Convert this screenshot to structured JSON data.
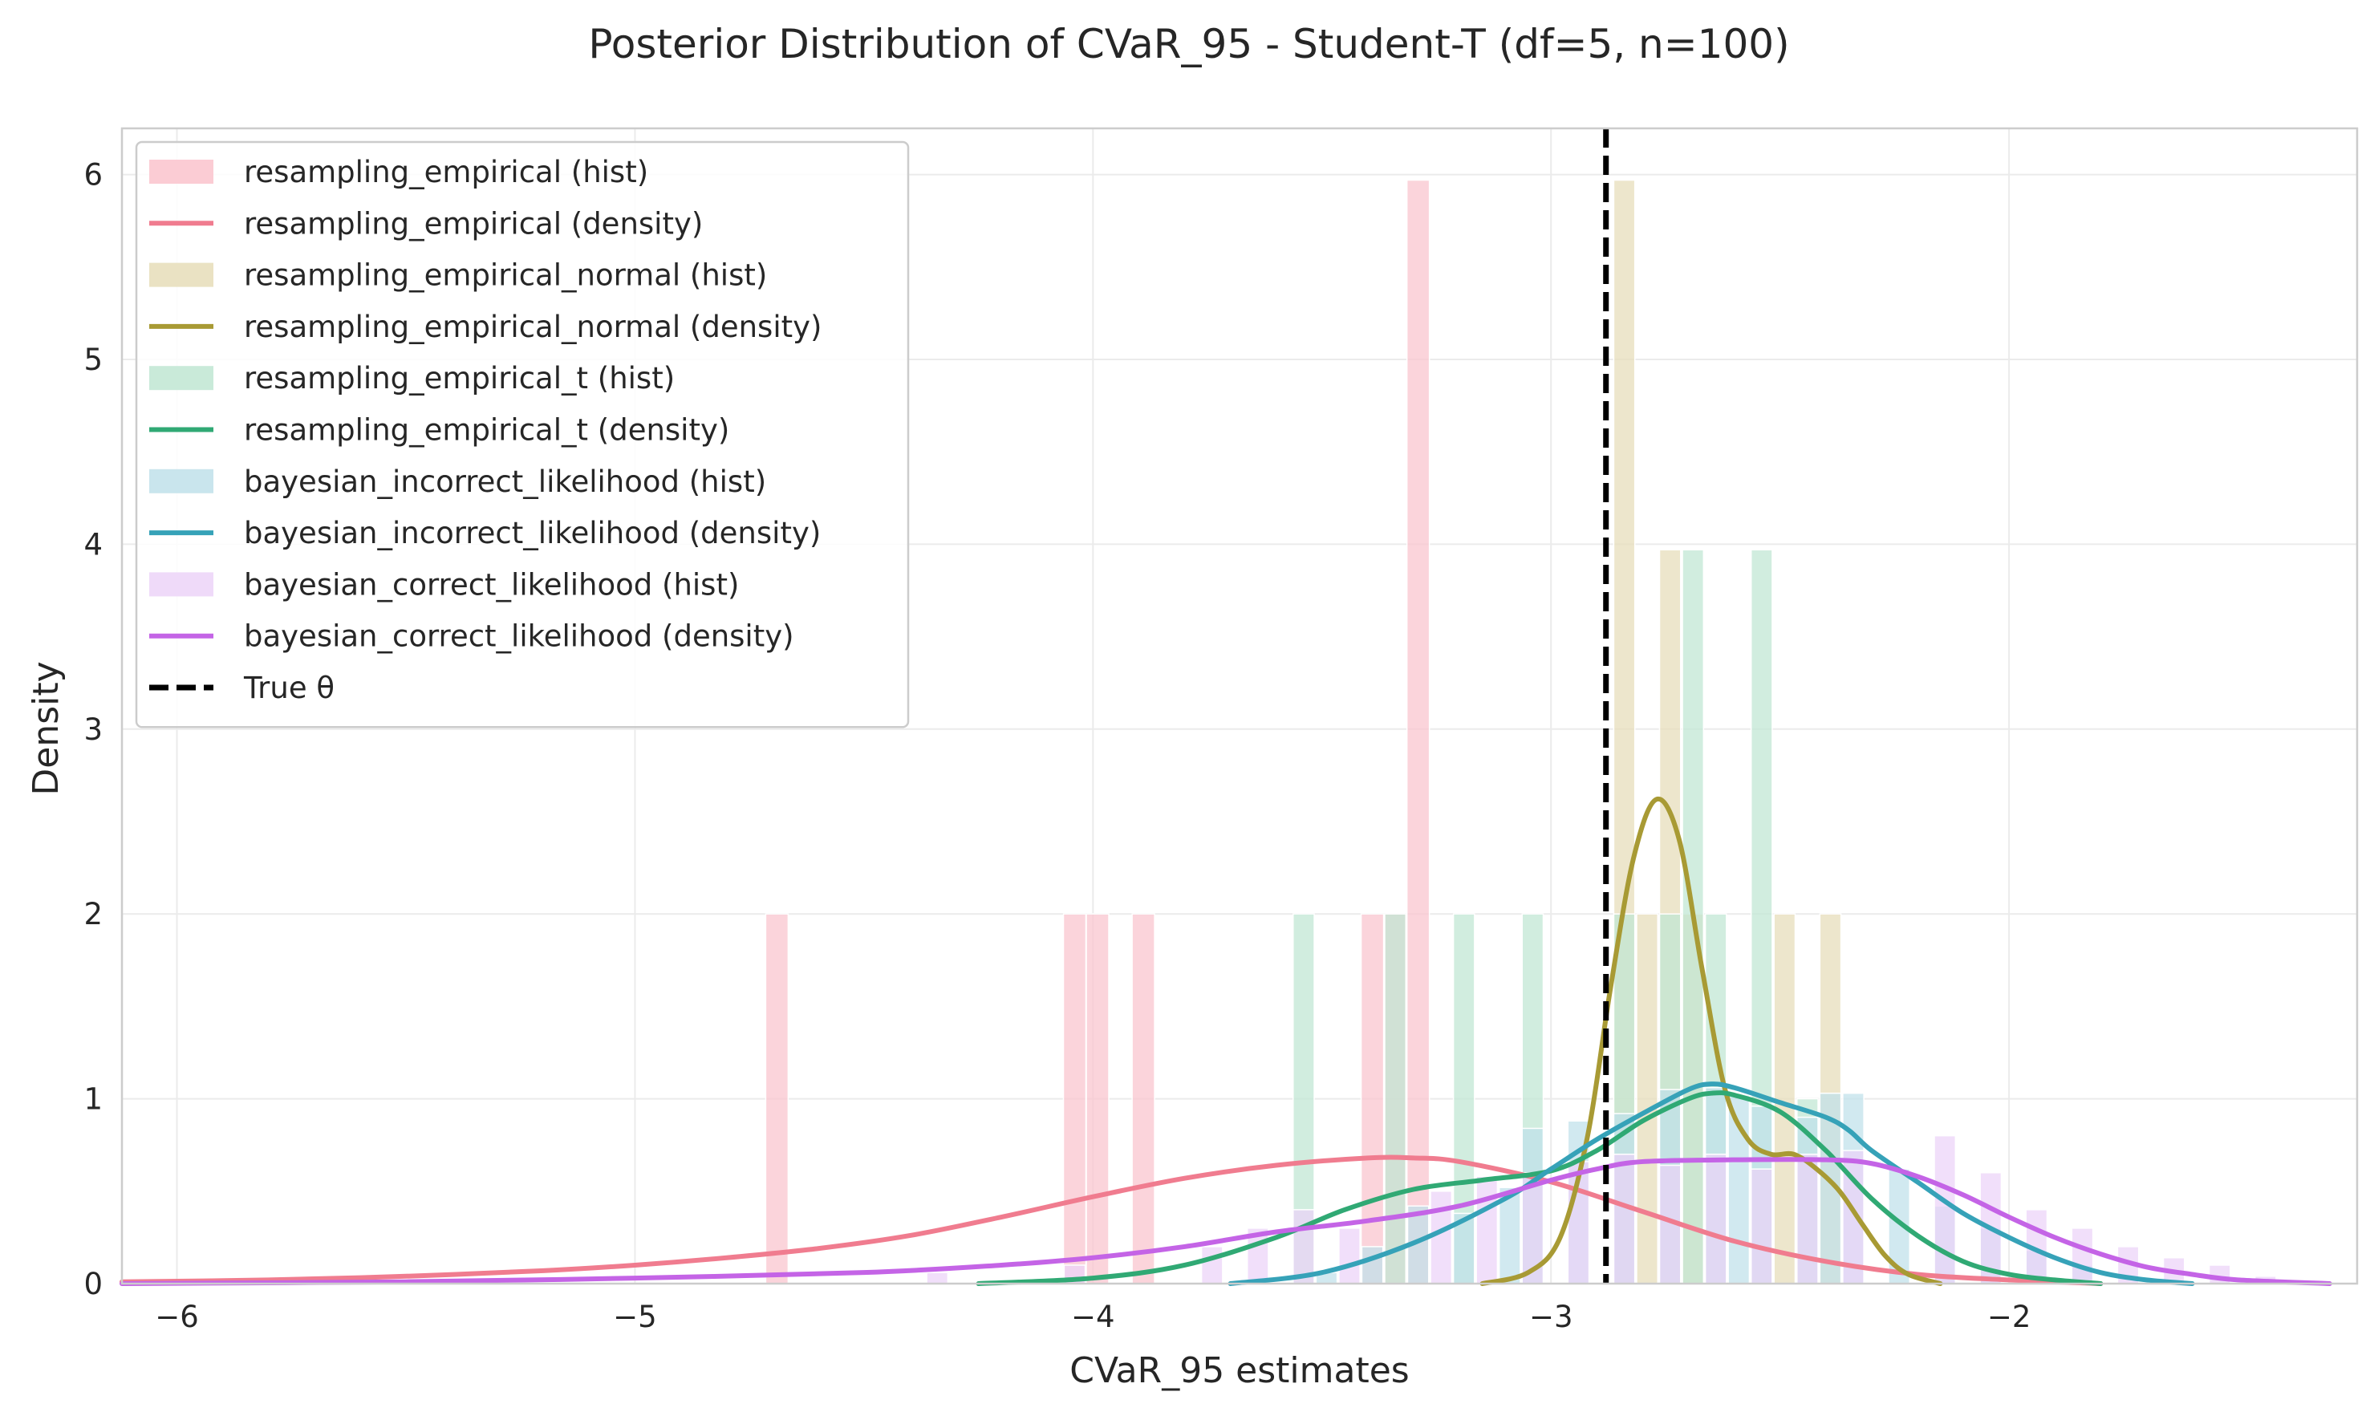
{
  "chart_data": {
    "type": "histogram+density",
    "title": "Posterior Distribution of CVaR_95 - Student-T (df=5, n=100)",
    "xlabel": "CVaR_95 estimates",
    "ylabel": "Density",
    "xlim": [
      -6.12,
      -1.24
    ],
    "ylim": [
      0,
      6.25
    ],
    "xticks": [
      -6,
      -5,
      -4,
      -3,
      -2
    ],
    "xtick_labels": [
      "−6",
      "−5",
      "−4",
      "−3",
      "−2"
    ],
    "yticks": [
      0,
      1,
      2,
      3,
      4,
      5,
      6
    ],
    "ytick_labels": [
      "0",
      "1",
      "2",
      "3",
      "4",
      "5",
      "6"
    ],
    "grid": true,
    "legend_position": "upper-left",
    "true_theta": {
      "label": "True θ",
      "x": -2.88,
      "color": "#000000",
      "style": "dashed"
    },
    "series": [
      {
        "name": "resampling_empirical",
        "hist_label": "resampling_empirical (hist)",
        "density_label": "resampling_empirical (density)",
        "color": "#f07c8f",
        "hist_color": "#fac3cd",
        "bin_width": 0.049,
        "hist": [
          [
            -4.69,
            2.0
          ],
          [
            -4.04,
            2.0
          ],
          [
            -3.99,
            2.0
          ],
          [
            -3.89,
            2.0
          ],
          [
            -3.39,
            2.0
          ],
          [
            -3.29,
            5.97
          ],
          [
            -3.34,
            2.0
          ]
        ],
        "density": [
          [
            -6.12,
            0.01
          ],
          [
            -5.8,
            0.02
          ],
          [
            -5.5,
            0.04
          ],
          [
            -5.2,
            0.07
          ],
          [
            -5.0,
            0.1
          ],
          [
            -4.8,
            0.14
          ],
          [
            -4.6,
            0.19
          ],
          [
            -4.4,
            0.26
          ],
          [
            -4.2,
            0.36
          ],
          [
            -4.0,
            0.47
          ],
          [
            -3.8,
            0.57
          ],
          [
            -3.6,
            0.64
          ],
          [
            -3.4,
            0.68
          ],
          [
            -3.3,
            0.68
          ],
          [
            -3.2,
            0.66
          ],
          [
            -3.0,
            0.55
          ],
          [
            -2.8,
            0.39
          ],
          [
            -2.6,
            0.23
          ],
          [
            -2.4,
            0.12
          ],
          [
            -2.2,
            0.05
          ],
          [
            -2.0,
            0.02
          ],
          [
            -1.8,
            0.0
          ]
        ]
      },
      {
        "name": "resampling_empirical_normal",
        "hist_label": "resampling_empirical_normal (hist)",
        "density_label": "resampling_empirical_normal (density)",
        "color": "#a89a34",
        "hist_color": "#e6ddb8",
        "bin_width": 0.046,
        "hist": [
          [
            -2.84,
            5.97
          ],
          [
            -2.79,
            2.0
          ],
          [
            -2.74,
            3.97
          ],
          [
            -2.69,
            2.0
          ],
          [
            -2.49,
            2.0
          ],
          [
            -2.39,
            2.0
          ]
        ],
        "density": [
          [
            -3.15,
            0.0
          ],
          [
            -3.05,
            0.06
          ],
          [
            -2.98,
            0.25
          ],
          [
            -2.92,
            0.8
          ],
          [
            -2.87,
            1.6
          ],
          [
            -2.82,
            2.3
          ],
          [
            -2.77,
            2.62
          ],
          [
            -2.72,
            2.4
          ],
          [
            -2.67,
            1.7
          ],
          [
            -2.62,
            1.05
          ],
          [
            -2.57,
            0.78
          ],
          [
            -2.52,
            0.7
          ],
          [
            -2.47,
            0.7
          ],
          [
            -2.42,
            0.62
          ],
          [
            -2.37,
            0.5
          ],
          [
            -2.32,
            0.32
          ],
          [
            -2.27,
            0.15
          ],
          [
            -2.22,
            0.05
          ],
          [
            -2.15,
            0.0
          ]
        ]
      },
      {
        "name": "resampling_empirical_t",
        "hist_label": "resampling_empirical_t (hist)",
        "density_label": "resampling_empirical_t (density)",
        "color": "#30a974",
        "hist_color": "#bfe6d2",
        "bin_width": 0.046,
        "hist": [
          [
            -3.54,
            2.0
          ],
          [
            -3.34,
            2.0
          ],
          [
            -3.19,
            2.0
          ],
          [
            -3.04,
            2.0
          ],
          [
            -2.84,
            2.0
          ],
          [
            -2.74,
            2.0
          ],
          [
            -2.69,
            3.97
          ],
          [
            -2.64,
            2.0
          ],
          [
            -2.54,
            3.97
          ],
          [
            -2.44,
            1.0
          ]
        ],
        "density": [
          [
            -4.25,
            0.0
          ],
          [
            -4.0,
            0.03
          ],
          [
            -3.8,
            0.1
          ],
          [
            -3.6,
            0.25
          ],
          [
            -3.45,
            0.4
          ],
          [
            -3.3,
            0.51
          ],
          [
            -3.15,
            0.56
          ],
          [
            -3.0,
            0.61
          ],
          [
            -2.9,
            0.72
          ],
          [
            -2.8,
            0.88
          ],
          [
            -2.7,
            1.0
          ],
          [
            -2.65,
            1.03
          ],
          [
            -2.6,
            1.02
          ],
          [
            -2.5,
            0.93
          ],
          [
            -2.4,
            0.72
          ],
          [
            -2.3,
            0.46
          ],
          [
            -2.2,
            0.26
          ],
          [
            -2.1,
            0.12
          ],
          [
            -2.0,
            0.05
          ],
          [
            -1.9,
            0.02
          ],
          [
            -1.8,
            0.0
          ]
        ]
      },
      {
        "name": "bayesian_incorrect_likelihood",
        "hist_label": "bayesian_incorrect_likelihood (hist)",
        "density_label": "bayesian_incorrect_likelihood (density)",
        "color": "#36a2b8",
        "hist_color": "#bfe0ea",
        "bin_width": 0.046,
        "hist": [
          [
            -3.49,
            0.06
          ],
          [
            -3.39,
            0.2
          ],
          [
            -3.29,
            0.42
          ],
          [
            -3.19,
            0.38
          ],
          [
            -3.09,
            0.52
          ],
          [
            -3.04,
            0.84
          ],
          [
            -2.94,
            0.88
          ],
          [
            -2.84,
            0.92
          ],
          [
            -2.74,
            1.05
          ],
          [
            -2.64,
            1.06
          ],
          [
            -2.59,
            1.02
          ],
          [
            -2.54,
            0.96
          ],
          [
            -2.44,
            0.9
          ],
          [
            -2.39,
            1.03
          ],
          [
            -2.34,
            1.03
          ],
          [
            -2.24,
            0.62
          ],
          [
            -2.14,
            0.42
          ],
          [
            -2.04,
            0.3
          ],
          [
            -1.94,
            0.18
          ],
          [
            -1.84,
            0.1
          ]
        ],
        "density": [
          [
            -3.7,
            0.0
          ],
          [
            -3.5,
            0.06
          ],
          [
            -3.3,
            0.22
          ],
          [
            -3.1,
            0.46
          ],
          [
            -3.0,
            0.62
          ],
          [
            -2.9,
            0.78
          ],
          [
            -2.8,
            0.92
          ],
          [
            -2.7,
            1.05
          ],
          [
            -2.65,
            1.08
          ],
          [
            -2.6,
            1.06
          ],
          [
            -2.5,
            0.98
          ],
          [
            -2.4,
            0.9
          ],
          [
            -2.35,
            0.83
          ],
          [
            -2.3,
            0.72
          ],
          [
            -2.2,
            0.55
          ],
          [
            -2.1,
            0.38
          ],
          [
            -2.0,
            0.25
          ],
          [
            -1.9,
            0.14
          ],
          [
            -1.8,
            0.06
          ],
          [
            -1.7,
            0.02
          ],
          [
            -1.6,
            0.0
          ]
        ]
      },
      {
        "name": "bayesian_correct_likelihood",
        "hist_label": "bayesian_correct_likelihood (hist)",
        "density_label": "bayesian_correct_likelihood (density)",
        "color": "#c464e6",
        "hist_color": "#ecd3f8",
        "bin_width": 0.046,
        "hist": [
          [
            -5.74,
            0.02
          ],
          [
            -4.34,
            0.06
          ],
          [
            -4.04,
            0.1
          ],
          [
            -3.74,
            0.2
          ],
          [
            -3.64,
            0.3
          ],
          [
            -3.54,
            0.4
          ],
          [
            -3.44,
            0.3
          ],
          [
            -3.24,
            0.5
          ],
          [
            -3.14,
            0.58
          ],
          [
            -3.04,
            0.6
          ],
          [
            -2.94,
            0.66
          ],
          [
            -2.84,
            0.7
          ],
          [
            -2.74,
            0.64
          ],
          [
            -2.64,
            0.7
          ],
          [
            -2.54,
            0.62
          ],
          [
            -2.44,
            0.7
          ],
          [
            -2.34,
            0.72
          ],
          [
            -2.14,
            0.8
          ],
          [
            -2.04,
            0.6
          ],
          [
            -1.94,
            0.4
          ],
          [
            -1.84,
            0.3
          ],
          [
            -1.74,
            0.2
          ],
          [
            -1.64,
            0.14
          ],
          [
            -1.54,
            0.1
          ],
          [
            -1.44,
            0.04
          ]
        ],
        "density": [
          [
            -6.12,
            0.0
          ],
          [
            -5.5,
            0.01
          ],
          [
            -5.0,
            0.03
          ],
          [
            -4.5,
            0.06
          ],
          [
            -4.2,
            0.1
          ],
          [
            -4.0,
            0.14
          ],
          [
            -3.8,
            0.2
          ],
          [
            -3.6,
            0.28
          ],
          [
            -3.4,
            0.34
          ],
          [
            -3.2,
            0.42
          ],
          [
            -3.0,
            0.56
          ],
          [
            -2.9,
            0.62
          ],
          [
            -2.8,
            0.66
          ],
          [
            -2.6,
            0.67
          ],
          [
            -2.4,
            0.67
          ],
          [
            -2.3,
            0.65
          ],
          [
            -2.2,
            0.58
          ],
          [
            -2.1,
            0.48
          ],
          [
            -2.0,
            0.36
          ],
          [
            -1.9,
            0.25
          ],
          [
            -1.8,
            0.16
          ],
          [
            -1.7,
            0.09
          ],
          [
            -1.6,
            0.05
          ],
          [
            -1.5,
            0.02
          ],
          [
            -1.3,
            0.0
          ]
        ]
      }
    ]
  }
}
